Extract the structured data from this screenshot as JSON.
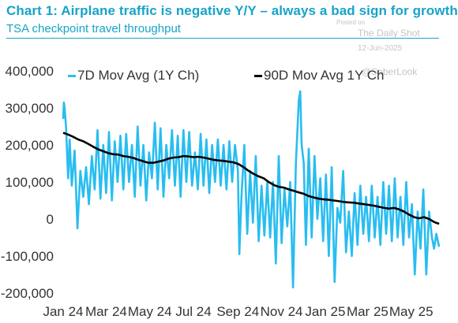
{
  "header": {
    "title": "Chart 1: Airplane traffic is negative Y/Y – always a bad sign for growth",
    "subtitle": "TSA checkpoint travel throughput"
  },
  "watermark": {
    "posted_on": "Posted on",
    "source": "The Daily Shot",
    "date": "12-Jun-2025",
    "handle": "@SoberLook"
  },
  "colors": {
    "accent": "#17a3c9",
    "series_7d": "#29bdf0",
    "series_90d": "#000000"
  },
  "chart_data": {
    "type": "line",
    "title": "Chart 1: Airplane traffic is negative Y/Y – always a bad sign for growth",
    "subtitle": "TSA checkpoint travel throughput",
    "xlabel": "",
    "ylabel": "",
    "ylim": [
      -200000,
      400000
    ],
    "yticks": [
      400000,
      300000,
      200000,
      100000,
      0,
      -100000,
      -200000
    ],
    "ytick_labels": [
      "400,000",
      "300,000",
      "200,000",
      "100,000",
      "0",
      "-100,000",
      "-200,000"
    ],
    "xticks": [
      "2024-01-01",
      "2024-03-01",
      "2024-05-01",
      "2024-07-01",
      "2024-09-01",
      "2024-11-01",
      "2025-01-01",
      "2025-03-01",
      "2025-05-01"
    ],
    "xtick_labels": [
      "Jan 24",
      "Mar 24",
      "May 24",
      "Jul 24",
      "Sep 24",
      "Nov 24",
      "Jan 25",
      "Mar 25",
      "May 25"
    ],
    "grid": false,
    "legend": "top",
    "series": [
      {
        "name": "7D Mov Avg (1Y Ch)",
        "color": "#29bdf0",
        "points": [
          [
            "2024-01-01",
            270000
          ],
          [
            "2024-01-02",
            315000
          ],
          [
            "2024-01-03",
            300000
          ],
          [
            "2024-01-05",
            250000
          ],
          [
            "2024-01-08",
            110000
          ],
          [
            "2024-01-10",
            215000
          ],
          [
            "2024-01-13",
            90000
          ],
          [
            "2024-01-17",
            185000
          ],
          [
            "2024-01-21",
            -25000
          ],
          [
            "2024-01-25",
            130000
          ],
          [
            "2024-01-29",
            60000
          ],
          [
            "2024-02-02",
            140000
          ],
          [
            "2024-02-06",
            40000
          ],
          [
            "2024-02-10",
            170000
          ],
          [
            "2024-02-14",
            80000
          ],
          [
            "2024-02-18",
            240000
          ],
          [
            "2024-02-22",
            55000
          ],
          [
            "2024-02-26",
            200000
          ],
          [
            "2024-03-01",
            70000
          ],
          [
            "2024-03-05",
            235000
          ],
          [
            "2024-03-09",
            50000
          ],
          [
            "2024-03-13",
            210000
          ],
          [
            "2024-03-17",
            100000
          ],
          [
            "2024-03-21",
            225000
          ],
          [
            "2024-03-25",
            80000
          ],
          [
            "2024-03-29",
            230000
          ],
          [
            "2024-04-02",
            100000
          ],
          [
            "2024-04-06",
            200000
          ],
          [
            "2024-04-10",
            60000
          ],
          [
            "2024-04-14",
            250000
          ],
          [
            "2024-04-18",
            90000
          ],
          [
            "2024-04-22",
            200000
          ],
          [
            "2024-04-26",
            50000
          ],
          [
            "2024-04-30",
            180000
          ],
          [
            "2024-05-04",
            110000
          ],
          [
            "2024-05-08",
            260000
          ],
          [
            "2024-05-12",
            80000
          ],
          [
            "2024-05-16",
            245000
          ],
          [
            "2024-05-20",
            60000
          ],
          [
            "2024-05-24",
            200000
          ],
          [
            "2024-05-28",
            110000
          ],
          [
            "2024-06-01",
            240000
          ],
          [
            "2024-06-05",
            90000
          ],
          [
            "2024-06-09",
            225000
          ],
          [
            "2024-06-13",
            60000
          ],
          [
            "2024-06-17",
            240000
          ],
          [
            "2024-06-21",
            100000
          ],
          [
            "2024-06-25",
            235000
          ],
          [
            "2024-06-29",
            90000
          ],
          [
            "2024-07-03",
            180000
          ],
          [
            "2024-07-07",
            80000
          ],
          [
            "2024-07-11",
            230000
          ],
          [
            "2024-07-15",
            90000
          ],
          [
            "2024-07-19",
            215000
          ],
          [
            "2024-07-23",
            70000
          ],
          [
            "2024-07-27",
            200000
          ],
          [
            "2024-07-31",
            100000
          ],
          [
            "2024-08-04",
            215000
          ],
          [
            "2024-08-08",
            90000
          ],
          [
            "2024-08-12",
            200000
          ],
          [
            "2024-08-16",
            80000
          ],
          [
            "2024-08-20",
            210000
          ],
          [
            "2024-08-24",
            100000
          ],
          [
            "2024-08-28",
            200000
          ],
          [
            "2024-09-01",
            130000
          ],
          [
            "2024-09-03",
            -95000
          ],
          [
            "2024-09-06",
            60000
          ],
          [
            "2024-09-10",
            200000
          ],
          [
            "2024-09-14",
            -40000
          ],
          [
            "2024-09-18",
            130000
          ],
          [
            "2024-09-22",
            -10000
          ],
          [
            "2024-09-26",
            170000
          ],
          [
            "2024-09-30",
            -60000
          ],
          [
            "2024-10-04",
            90000
          ],
          [
            "2024-10-08",
            -45000
          ],
          [
            "2024-10-12",
            100000
          ],
          [
            "2024-10-16",
            -50000
          ],
          [
            "2024-10-20",
            100000
          ],
          [
            "2024-10-24",
            -120000
          ],
          [
            "2024-10-28",
            170000
          ],
          [
            "2024-11-01",
            -65000
          ],
          [
            "2024-11-05",
            80000
          ],
          [
            "2024-11-09",
            -20000
          ],
          [
            "2024-11-13",
            100000
          ],
          [
            "2024-11-17",
            -185000
          ],
          [
            "2024-11-21",
            150000
          ],
          [
            "2024-11-25",
            320000
          ],
          [
            "2024-11-27",
            345000
          ],
          [
            "2024-11-29",
            200000
          ],
          [
            "2024-12-02",
            150000
          ],
          [
            "2024-12-05",
            -70000
          ],
          [
            "2024-12-09",
            190000
          ],
          [
            "2024-12-13",
            -50000
          ],
          [
            "2024-12-17",
            170000
          ],
          [
            "2024-12-21",
            0
          ],
          [
            "2024-12-25",
            110000
          ],
          [
            "2024-12-29",
            -60000
          ],
          [
            "2025-01-02",
            120000
          ],
          [
            "2025-01-06",
            -100000
          ],
          [
            "2025-01-10",
            140000
          ],
          [
            "2025-01-14",
            -170000
          ],
          [
            "2025-01-18",
            30000
          ],
          [
            "2025-01-22",
            -10000
          ],
          [
            "2025-01-26",
            130000
          ],
          [
            "2025-01-30",
            -90000
          ],
          [
            "2025-02-03",
            20000
          ],
          [
            "2025-02-07",
            -100000
          ],
          [
            "2025-02-11",
            70000
          ],
          [
            "2025-02-15",
            -70000
          ],
          [
            "2025-02-19",
            90000
          ],
          [
            "2025-02-23",
            -40000
          ],
          [
            "2025-02-27",
            60000
          ],
          [
            "2025-03-03",
            -60000
          ],
          [
            "2025-03-07",
            90000
          ],
          [
            "2025-03-11",
            -50000
          ],
          [
            "2025-03-15",
            60000
          ],
          [
            "2025-03-19",
            -70000
          ],
          [
            "2025-03-23",
            100000
          ],
          [
            "2025-03-27",
            -40000
          ],
          [
            "2025-03-31",
            90000
          ],
          [
            "2025-04-04",
            -60000
          ],
          [
            "2025-04-08",
            110000
          ],
          [
            "2025-04-12",
            -50000
          ],
          [
            "2025-04-16",
            60000
          ],
          [
            "2025-04-20",
            -70000
          ],
          [
            "2025-04-24",
            100000
          ],
          [
            "2025-04-28",
            -50000
          ],
          [
            "2025-05-02",
            40000
          ],
          [
            "2025-05-06",
            -150000
          ],
          [
            "2025-05-10",
            20000
          ],
          [
            "2025-05-14",
            -80000
          ],
          [
            "2025-05-18",
            80000
          ],
          [
            "2025-05-22",
            -150000
          ],
          [
            "2025-05-26",
            20000
          ],
          [
            "2025-05-30",
            -50000
          ],
          [
            "2025-06-02",
            -80000
          ],
          [
            "2025-06-05",
            -40000
          ],
          [
            "2025-06-09",
            -75000
          ]
        ]
      },
      {
        "name": "90D Mov Avg 1Y Ch",
        "color": "#000000",
        "points": [
          [
            "2024-01-01",
            233000
          ],
          [
            "2024-01-08",
            228000
          ],
          [
            "2024-01-15",
            222000
          ],
          [
            "2024-01-22",
            215000
          ],
          [
            "2024-01-29",
            210000
          ],
          [
            "2024-02-05",
            203000
          ],
          [
            "2024-02-12",
            195000
          ],
          [
            "2024-02-19",
            188000
          ],
          [
            "2024-02-26",
            183000
          ],
          [
            "2024-03-04",
            178000
          ],
          [
            "2024-03-11",
            175000
          ],
          [
            "2024-03-18",
            174000
          ],
          [
            "2024-03-25",
            170000
          ],
          [
            "2024-04-01",
            168000
          ],
          [
            "2024-04-08",
            165000
          ],
          [
            "2024-04-15",
            160000
          ],
          [
            "2024-04-22",
            156000
          ],
          [
            "2024-04-29",
            152000
          ],
          [
            "2024-05-06",
            152000
          ],
          [
            "2024-05-13",
            155000
          ],
          [
            "2024-05-20",
            158000
          ],
          [
            "2024-05-27",
            163000
          ],
          [
            "2024-06-03",
            166000
          ],
          [
            "2024-06-10",
            167000
          ],
          [
            "2024-06-17",
            170000
          ],
          [
            "2024-06-24",
            169000
          ],
          [
            "2024-07-01",
            167000
          ],
          [
            "2024-07-08",
            168000
          ],
          [
            "2024-07-15",
            166000
          ],
          [
            "2024-07-22",
            163000
          ],
          [
            "2024-07-29",
            160000
          ],
          [
            "2024-08-05",
            158000
          ],
          [
            "2024-08-12",
            157000
          ],
          [
            "2024-08-19",
            155000
          ],
          [
            "2024-08-26",
            153000
          ],
          [
            "2024-09-02",
            148000
          ],
          [
            "2024-09-09",
            140000
          ],
          [
            "2024-09-16",
            130000
          ],
          [
            "2024-09-23",
            122000
          ],
          [
            "2024-09-30",
            115000
          ],
          [
            "2024-10-07",
            110000
          ],
          [
            "2024-10-14",
            100000
          ],
          [
            "2024-10-21",
            92000
          ],
          [
            "2024-10-28",
            87000
          ],
          [
            "2024-11-04",
            85000
          ],
          [
            "2024-11-11",
            80000
          ],
          [
            "2024-11-18",
            76000
          ],
          [
            "2024-11-25",
            72000
          ],
          [
            "2024-12-02",
            68000
          ],
          [
            "2024-12-09",
            62000
          ],
          [
            "2024-12-16",
            58000
          ],
          [
            "2024-12-23",
            55000
          ],
          [
            "2024-12-30",
            53000
          ],
          [
            "2025-01-06",
            52000
          ],
          [
            "2025-01-13",
            50000
          ],
          [
            "2025-01-20",
            48000
          ],
          [
            "2025-01-27",
            46000
          ],
          [
            "2025-02-03",
            45000
          ],
          [
            "2025-02-10",
            44000
          ],
          [
            "2025-02-17",
            42000
          ],
          [
            "2025-02-24",
            40000
          ],
          [
            "2025-03-03",
            38000
          ],
          [
            "2025-03-10",
            36000
          ],
          [
            "2025-03-17",
            33000
          ],
          [
            "2025-03-24",
            30000
          ],
          [
            "2025-03-31",
            28000
          ],
          [
            "2025-04-07",
            30000
          ],
          [
            "2025-04-14",
            26000
          ],
          [
            "2025-04-21",
            20000
          ],
          [
            "2025-04-28",
            12000
          ],
          [
            "2025-05-05",
            5000
          ],
          [
            "2025-05-12",
            2000
          ],
          [
            "2025-05-19",
            5000
          ],
          [
            "2025-05-26",
            0
          ],
          [
            "2025-06-02",
            -8000
          ],
          [
            "2025-06-09",
            -13000
          ]
        ]
      }
    ]
  }
}
